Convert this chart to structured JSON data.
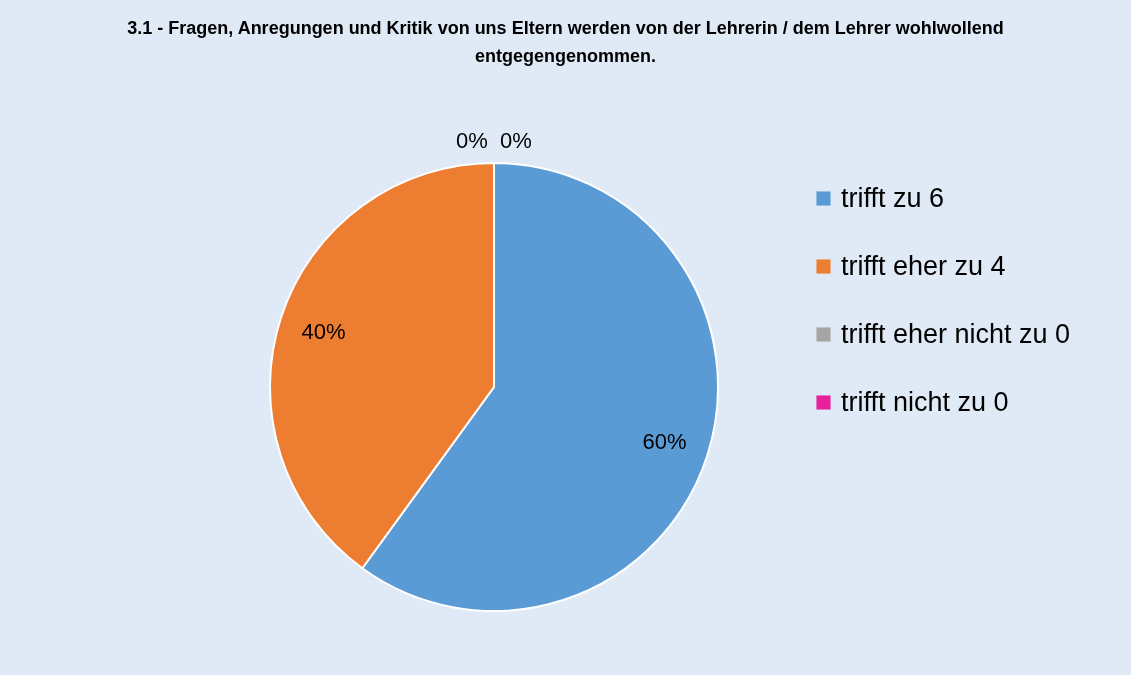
{
  "chart_data": {
    "type": "pie",
    "title": "3.1 - Fragen, Anregungen und Kritik von uns Eltern werden von der Lehrerin / dem Lehrer wohlwollend entgegengenommen.",
    "categories": [
      "trifft zu 6",
      "trifft eher zu 4",
      "trifft eher nicht  zu 0",
      "trifft nicht zu 0"
    ],
    "values": [
      60,
      40,
      0,
      0
    ],
    "colors": [
      "#5b9bd5",
      "#ed7d31",
      "#a5a5a5",
      "#e8219b"
    ],
    "value_labels": [
      "60%",
      "40%",
      "0%",
      "0%"
    ],
    "legend": "right"
  }
}
